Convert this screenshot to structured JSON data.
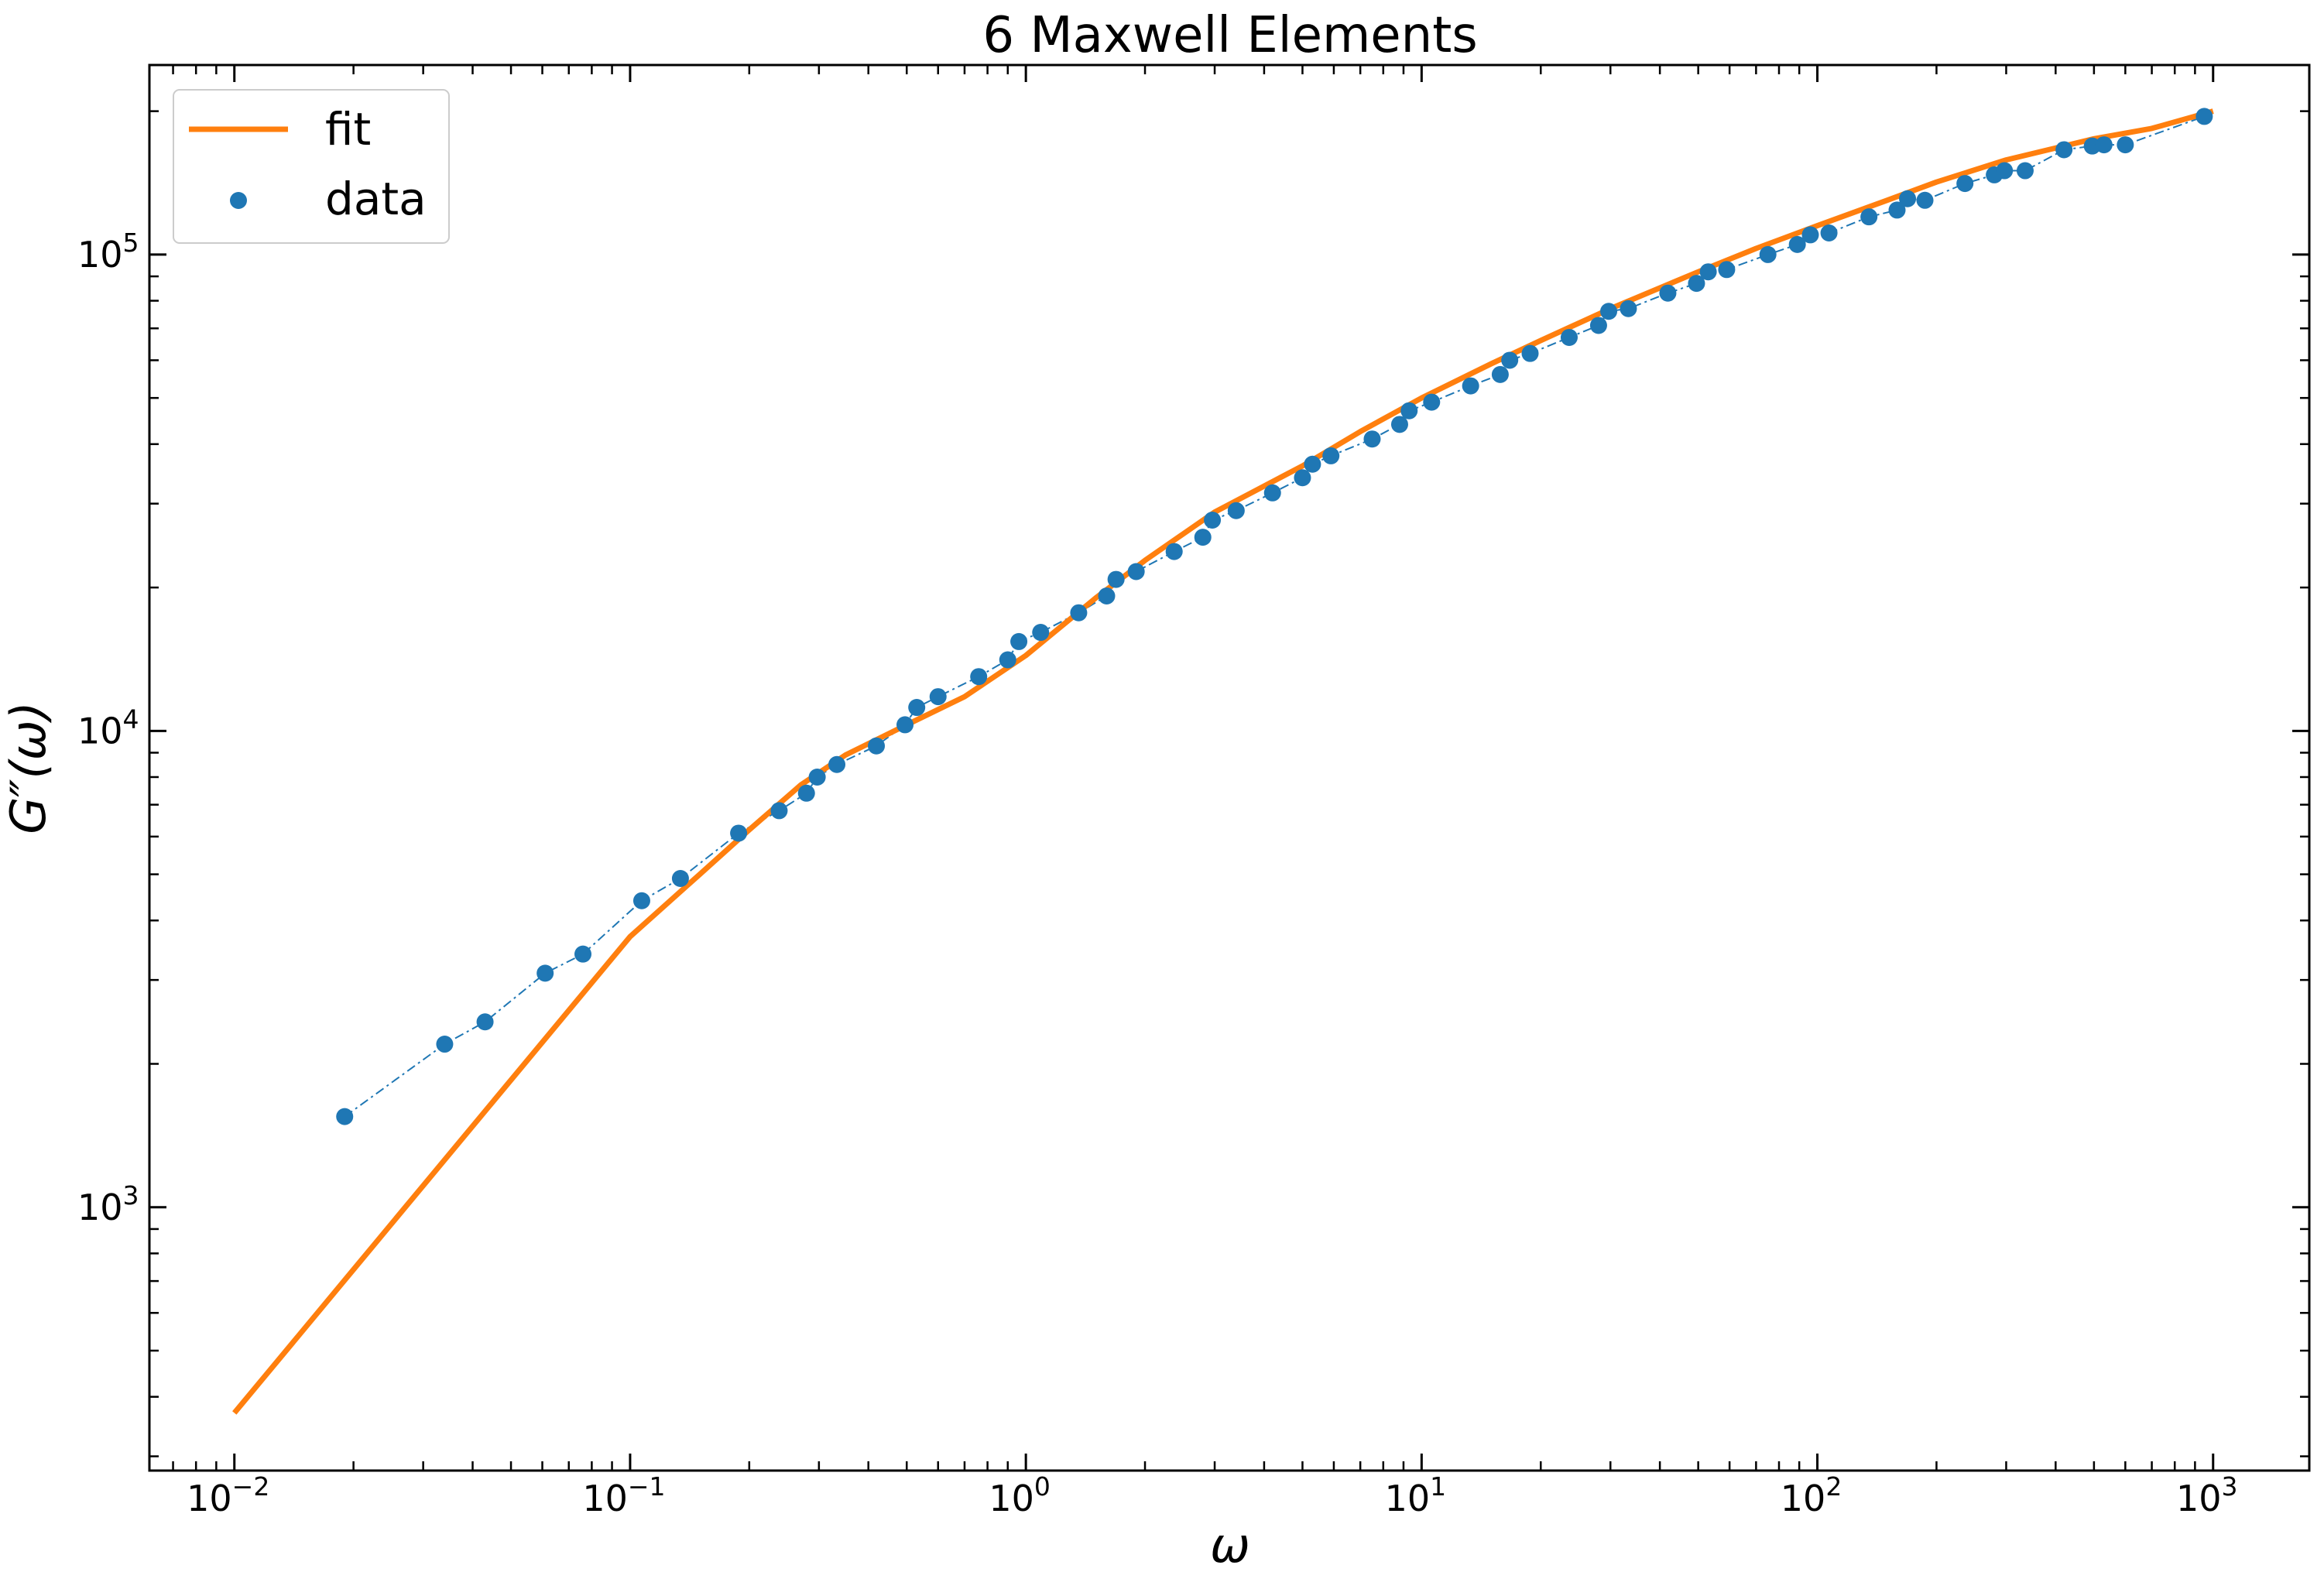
{
  "chart_data": {
    "type": "scatter",
    "title": "6 Maxwell Elements",
    "xlabel": "ω",
    "ylabel": "G″(ω)",
    "xscale": "log",
    "yscale": "log",
    "xlim": [
      0.0061,
      1750
    ],
    "ylim": [
      280,
      250000
    ],
    "grid": false,
    "legend_position": "upper left",
    "x_ticks": [
      {
        "base": "10",
        "exp": "−2",
        "value": 0.01
      },
      {
        "base": "10",
        "exp": "−1",
        "value": 0.1
      },
      {
        "base": "10",
        "exp": "0",
        "value": 1
      },
      {
        "base": "10",
        "exp": "1",
        "value": 10
      },
      {
        "base": "10",
        "exp": "2",
        "value": 100
      },
      {
        "base": "10",
        "exp": "3",
        "value": 1000
      }
    ],
    "y_ticks": [
      {
        "base": "10",
        "exp": "3",
        "value": 1000
      },
      {
        "base": "10",
        "exp": "4",
        "value": 10000
      },
      {
        "base": "10",
        "exp": "5",
        "value": 100000
      }
    ],
    "series": [
      {
        "name": "fit",
        "kind": "line",
        "color": "#ff7f0e",
        "x": [
          0.01,
          0.02,
          0.05,
          0.1,
          0.15,
          0.2,
          0.27,
          0.35,
          0.5,
          0.7,
          1.0,
          1.5,
          2.0,
          3.0,
          5.0,
          7.0,
          10,
          15,
          20,
          30,
          50,
          70,
          100,
          150,
          200,
          300,
          500,
          700,
          1000
        ],
        "y": [
          370,
          740,
          1850,
          3700,
          5000,
          6200,
          7700,
          8900,
          10300,
          11800,
          14400,
          19000,
          22800,
          28800,
          36000,
          42500,
          50000,
          59000,
          66000,
          77000,
          92000,
          103000,
          115000,
          130000,
          142000,
          158000,
          175000,
          184000,
          200000
        ]
      },
      {
        "name": "data",
        "kind": "scatter",
        "color": "#1f77b4",
        "x": [
          0.019,
          0.034,
          0.043,
          0.061,
          0.076,
          0.107,
          0.134,
          0.188,
          0.238,
          0.279,
          0.297,
          0.333,
          0.419,
          0.495,
          0.53,
          0.6,
          0.76,
          0.9,
          0.96,
          1.09,
          1.36,
          1.6,
          1.69,
          1.9,
          2.37,
          2.8,
          2.96,
          3.4,
          4.2,
          5.0,
          5.3,
          5.9,
          7.5,
          8.8,
          9.3,
          10.6,
          13.3,
          15.8,
          16.7,
          18.8,
          23.6,
          28,
          29.7,
          33.3,
          41.9,
          49.5,
          53,
          59,
          75,
          89,
          96,
          107,
          135,
          159,
          169,
          187,
          236,
          280,
          297,
          335,
          420,
          495,
          530,
          600,
          950
        ],
        "y": [
          1550,
          2200,
          2450,
          3100,
          3400,
          4400,
          4900,
          6100,
          6800,
          7400,
          8000,
          8500,
          9300,
          10300,
          11200,
          11800,
          13000,
          14100,
          15400,
          16100,
          17700,
          19200,
          20800,
          21600,
          23800,
          25500,
          27700,
          29000,
          31600,
          34000,
          36300,
          37800,
          41000,
          44000,
          47000,
          49000,
          53000,
          56000,
          60000,
          62000,
          67000,
          71000,
          76000,
          77000,
          83000,
          87000,
          92000,
          93000,
          100000,
          105000,
          110000,
          111000,
          120000,
          124000,
          131000,
          130000,
          141000,
          147000,
          150000,
          150000,
          166000,
          169000,
          170000,
          170000,
          195000
        ]
      }
    ]
  }
}
